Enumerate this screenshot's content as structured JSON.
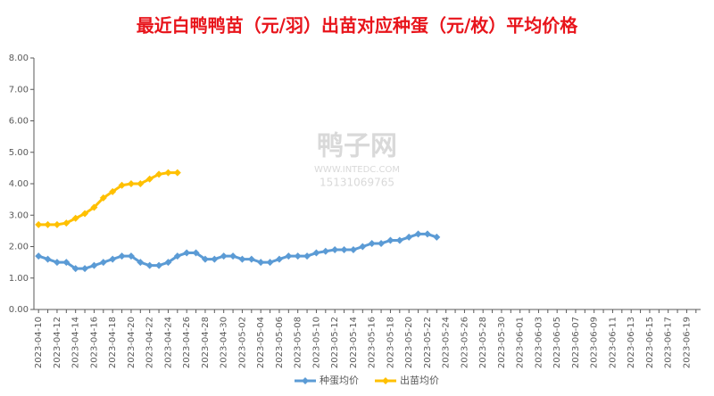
{
  "chart_data": {
    "type": "line",
    "title": "最近白鸭鸭苗（元/羽）出苗对应种蛋（元/枚）平均价格",
    "watermark": [
      "鸭子网",
      "WWW.INTEDC.COM",
      "15131069765"
    ],
    "categories": [
      "2023-04-10",
      null,
      "2023-04-12",
      null,
      "2023-04-14",
      null,
      "2023-04-16",
      null,
      "2023-04-18",
      null,
      "2023-04-20",
      null,
      "2023-04-22",
      null,
      "2023-04-24",
      null,
      "2023-04-26",
      null,
      "2023-04-28",
      null,
      "2023-04-30",
      null,
      "2023-05-02",
      null,
      "2023-05-04",
      null,
      "2023-05-06",
      null,
      "2023-05-08",
      null,
      "2023-05-10",
      null,
      "2023-05-12",
      null,
      "2023-05-14",
      null,
      "2023-05-16",
      null,
      "2023-05-18",
      null,
      "2023-05-20",
      null,
      "2023-05-22",
      null,
      "2023-05-24",
      null,
      "2023-05-26",
      null,
      "2023-05-28",
      null,
      "2023-05-30",
      null,
      "2023-06-01",
      null,
      "2023-06-03",
      null,
      "2023-06-05",
      null,
      "2023-06-07",
      null,
      "2023-06-09",
      null,
      "2023-06-11",
      null,
      "2023-06-13",
      null,
      "2023-06-15",
      null,
      "2023-06-17",
      null,
      "2023-06-19",
      null
    ],
    "series": [
      {
        "name": "种蛋均价",
        "color": "#5b9bd5",
        "values": [
          1.7,
          1.6,
          1.5,
          1.5,
          1.3,
          1.3,
          1.4,
          1.5,
          1.6,
          1.7,
          1.7,
          1.5,
          1.4,
          1.4,
          1.5,
          1.7,
          1.8,
          1.8,
          1.6,
          1.6,
          1.7,
          1.7,
          1.6,
          1.6,
          1.5,
          1.5,
          1.6,
          1.7,
          1.7,
          1.7,
          1.8,
          1.85,
          1.9,
          1.9,
          1.9,
          2.0,
          2.1,
          2.1,
          2.2,
          2.2,
          2.3,
          2.4,
          2.4,
          2.3,
          null,
          null,
          null,
          null,
          null,
          null,
          null,
          null,
          null,
          null,
          null,
          null,
          null,
          null,
          null,
          null,
          null,
          null,
          null,
          null,
          null,
          null,
          null,
          null,
          null,
          null,
          null,
          null
        ]
      },
      {
        "name": "出苗均价",
        "color": "#ffc000",
        "values": [
          2.7,
          2.7,
          2.7,
          2.75,
          2.9,
          3.05,
          3.25,
          3.55,
          3.75,
          3.95,
          4.0,
          4.0,
          4.15,
          4.3,
          4.35,
          4.35,
          null,
          null,
          null,
          null,
          null,
          null,
          null,
          null,
          null,
          null,
          null,
          null,
          null,
          null,
          null,
          null,
          null,
          null,
          null,
          null,
          null,
          null,
          null,
          null,
          null,
          null,
          null,
          null,
          null,
          null,
          null,
          null,
          null,
          null,
          null,
          null,
          null,
          null,
          null,
          null,
          null,
          null,
          null,
          null,
          null,
          null,
          null,
          null,
          null,
          null,
          null,
          null,
          null,
          null,
          null,
          null
        ]
      }
    ],
    "ylim": [
      0,
      8
    ],
    "yticks": [
      {
        "value": 0,
        "label": "0.00"
      },
      {
        "value": 1,
        "label": "1.00"
      },
      {
        "value": 2,
        "label": "2.00"
      },
      {
        "value": 3,
        "label": "3.00"
      },
      {
        "value": 4,
        "label": "4.00"
      },
      {
        "value": 5,
        "label": "5.00"
      },
      {
        "value": 6,
        "label": "6.00"
      },
      {
        "value": 7,
        "label": "7.00"
      },
      {
        "value": 8,
        "label": "8.00"
      }
    ],
    "grid": false,
    "legend": "bottom"
  }
}
